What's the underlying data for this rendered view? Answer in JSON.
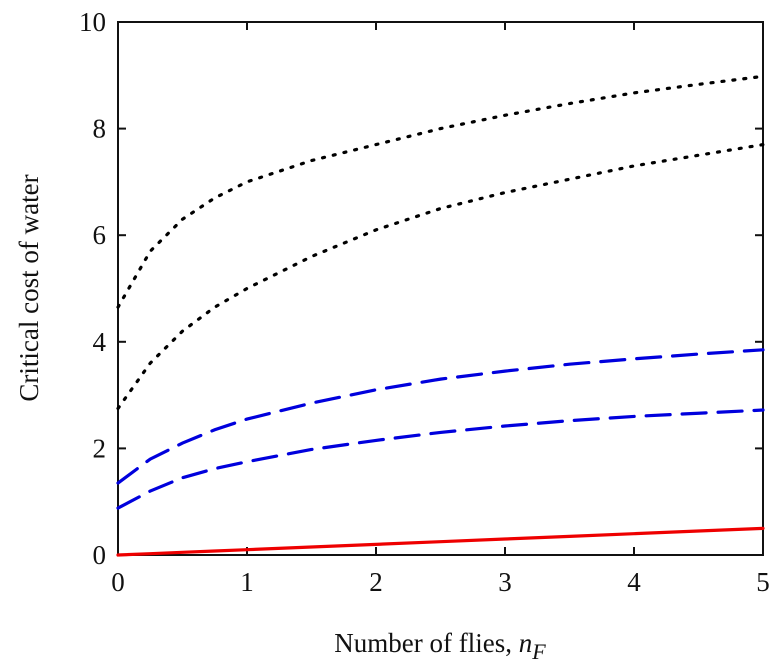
{
  "chart_data": {
    "type": "line",
    "xlabel": "Number of flies,",
    "xlabel_var": "n",
    "xlabel_sub": "F",
    "ylabel": "Critical cost of water",
    "x": [
      0,
      0.25,
      0.5,
      0.75,
      1,
      1.5,
      2,
      2.5,
      3,
      3.5,
      4,
      4.5,
      5
    ],
    "xlim": [
      0,
      5
    ],
    "xticks": [
      0,
      1,
      2,
      3,
      4,
      5
    ],
    "ylim": [
      0,
      10
    ],
    "yticks": [
      0,
      2,
      4,
      6,
      8,
      10
    ],
    "grid": false,
    "series": [
      {
        "color": "#000000",
        "style": "dotted",
        "values": [
          4.65,
          5.7,
          6.3,
          6.7,
          7.0,
          7.4,
          7.7,
          8.0,
          8.25,
          8.47,
          8.67,
          8.83,
          8.98
        ]
      },
      {
        "color": "#000000",
        "style": "dotted",
        "values": [
          2.75,
          3.6,
          4.2,
          4.65,
          5.0,
          5.6,
          6.1,
          6.5,
          6.8,
          7.05,
          7.3,
          7.5,
          7.7
        ]
      },
      {
        "color": "#0000dd",
        "style": "dashed",
        "values": [
          1.35,
          1.8,
          2.1,
          2.35,
          2.55,
          2.85,
          3.1,
          3.3,
          3.45,
          3.58,
          3.68,
          3.77,
          3.85
        ]
      },
      {
        "color": "#0000dd",
        "style": "dashed",
        "values": [
          0.88,
          1.2,
          1.45,
          1.62,
          1.75,
          1.98,
          2.15,
          2.3,
          2.42,
          2.52,
          2.6,
          2.66,
          2.72
        ]
      },
      {
        "color": "#ee0000",
        "style": "solid",
        "values": [
          0,
          0.025,
          0.05,
          0.075,
          0.1,
          0.15,
          0.2,
          0.25,
          0.3,
          0.35,
          0.4,
          0.45,
          0.5
        ]
      }
    ]
  }
}
